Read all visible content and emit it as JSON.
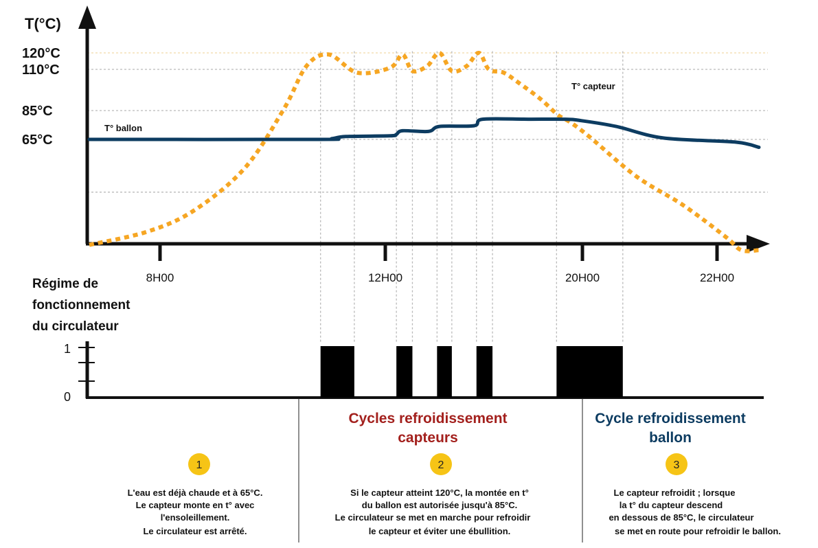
{
  "colors": {
    "collector": "#f6a623",
    "tank": "#0d3c61",
    "grid": "#b9b9b9",
    "section2_title": "#a3201d",
    "section3_title": "#0d3c61",
    "badge": "#f6c416"
  },
  "chart_data": {
    "type": "line",
    "y_axis_title": "T(°C)",
    "y_ticks": [
      {
        "label": "120°C",
        "value": 120
      },
      {
        "label": "110°C",
        "value": 110
      },
      {
        "label": "85°C",
        "value": 85
      },
      {
        "label": "65°C",
        "value": 65
      }
    ],
    "x_ticks": [
      {
        "label": "8H00",
        "value": 8
      },
      {
        "label": "12H00",
        "value": 12
      },
      {
        "label": "20H00",
        "value": 20
      },
      {
        "label": "22H00",
        "value": 22
      }
    ],
    "series": [
      {
        "name": "T° ballon",
        "color": "#0d3c61",
        "style": "solid",
        "points": [
          [
            6.9,
            65
          ],
          [
            10.8,
            65
          ],
          [
            11.05,
            65.5
          ],
          [
            11.3,
            67
          ],
          [
            12.2,
            67.5
          ],
          [
            12.45,
            68.5
          ],
          [
            12.7,
            71
          ],
          [
            13.75,
            70.5
          ],
          [
            14.2,
            74
          ],
          [
            15.6,
            74.5
          ],
          [
            15.95,
            79
          ],
          [
            17.8,
            79
          ],
          [
            19.3,
            79
          ],
          [
            19.95,
            78
          ],
          [
            20.5,
            74
          ],
          [
            21.2,
            66
          ],
          [
            22.8,
            64
          ],
          [
            23.9,
            62
          ]
        ]
      },
      {
        "name": "T° capteur",
        "color": "#f6a623",
        "style": "dotted",
        "points": [
          [
            6.9,
            25
          ],
          [
            7.8,
            30
          ],
          [
            8.6,
            38
          ],
          [
            9.5,
            54
          ],
          [
            10.2,
            86
          ],
          [
            10.6,
            112
          ],
          [
            11.0,
            119
          ],
          [
            11.5,
            108
          ],
          [
            12.2,
            111
          ],
          [
            12.7,
            119
          ],
          [
            13.1,
            109
          ],
          [
            13.7,
            112
          ],
          [
            14.2,
            120
          ],
          [
            14.7,
            109
          ],
          [
            15.3,
            112
          ],
          [
            15.8,
            120
          ],
          [
            16.2,
            110
          ],
          [
            16.8,
            108
          ],
          [
            17.4,
            102
          ],
          [
            18.3,
            92
          ],
          [
            19.0,
            82
          ],
          [
            19.5,
            77
          ],
          [
            20.1,
            67
          ],
          [
            20.8,
            51
          ],
          [
            21.5,
            40
          ],
          [
            22.4,
            28
          ],
          [
            23.1,
            23
          ],
          [
            23.9,
            23
          ]
        ]
      }
    ],
    "regime": {
      "title_lines": [
        "Régime de",
        "fonctionnement",
        "du circulateur"
      ],
      "levels": [
        {
          "label": "1",
          "value": 1
        },
        {
          "label": "0",
          "value": 0
        }
      ],
      "on_periods": [
        [
          10.85,
          11.45
        ],
        [
          12.45,
          13.1
        ],
        [
          14.1,
          14.7
        ],
        [
          15.7,
          16.35
        ],
        [
          18.95,
          20.6
        ]
      ]
    }
  },
  "sections": [
    {
      "number": "1",
      "title_lines": [],
      "lines": [
        "L'eau est déjà chaude et à 65°C.",
        "Le capteur monte en t° avec",
        "l'ensoleillement.",
        "Le circulateur est arrêté."
      ]
    },
    {
      "number": "2",
      "title_lines": [
        "Cycles refroidissement",
        "capteurs"
      ],
      "lines": [
        "Si le capteur atteint 120°C, la montée en t°",
        "du ballon est autorisée jusqu'à 85°C.",
        "Le circulateur se met en marche pour refroidir",
        "le capteur et éviter une ébullition."
      ]
    },
    {
      "number": "3",
      "title_lines": [
        "Cycle refroidissement",
        "ballon"
      ],
      "lines": [
        "Le capteur refroidit ; lorsque",
        "la t° du capteur descend",
        "en dessous de 85°C, le circulateur",
        "se met en route pour refroidir le ballon."
      ]
    }
  ]
}
